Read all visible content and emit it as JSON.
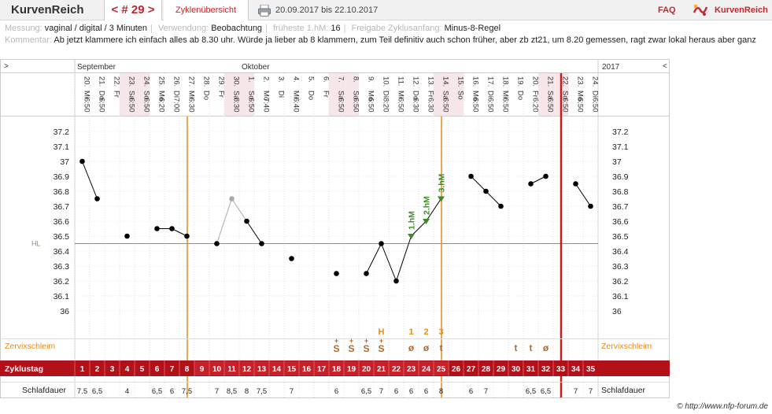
{
  "topbar": {
    "brand": "KurvenReich",
    "cycle_label": "< # 29 >",
    "overview_tab": "Zyklenübersicht",
    "date_range": "20.09.2017 bis 22.10.2017",
    "faq": "FAQ",
    "logo_text": "KurvenReich",
    "print_icon": "printer-icon",
    "logo_icon": "kurvenreich-logo-icon"
  },
  "info": {
    "measurement_label": "Messung:",
    "measurement_value": "vaginal / digital / 3 Minuten",
    "usage_label": "Verwendung:",
    "usage_value": "Beobachtung",
    "earliest_label": "früheste 1.hM:",
    "earliest_value": "16",
    "release_label": "Freigabe Zyklusanfang:",
    "release_value": "Minus-8-Regel",
    "comment_label": "Kommentar:",
    "comment_value": "Ab jetzt klammere ich einfach alles ab 8.30  uhr. Würde ja lieber ab 8 klammern, zum Teil definitiv auch schon früher, aber zb zt21, um 8.20 gemessen, ragt zwar lokal heraus aber ganz"
  },
  "chart_data": {
    "type": "line",
    "year_label": "2017",
    "month_labels": [
      {
        "label": "September",
        "index": 0
      },
      {
        "label": "Oktober",
        "index": 11
      }
    ],
    "nav_left": ">",
    "nav_right": "<",
    "dates": [
      "20.",
      "21.",
      "22.",
      "23.",
      "24.",
      "25.",
      "26.",
      "27.",
      "28.",
      "29.",
      "30.",
      "1.",
      "2.",
      "3.",
      "4.",
      "5.",
      "6.",
      "7.",
      "8.",
      "9.",
      "10.",
      "11.",
      "12.",
      "13.",
      "14.",
      "15.",
      "16.",
      "17.",
      "18.",
      "19.",
      "20.",
      "21.",
      "22.",
      "23.",
      "24."
    ],
    "weekdays": [
      "Mi",
      "Do",
      "Fr",
      "Sa",
      "So",
      "Mo",
      "Di",
      "Mi",
      "Do",
      "Fr",
      "Sa",
      "So",
      "Mo",
      "Di",
      "Mi",
      "Do",
      "Fr",
      "Sa",
      "So",
      "Mo",
      "Di",
      "Mi",
      "Do",
      "Fr",
      "Sa",
      "So",
      "Mo",
      "Di",
      "Mi",
      "Do",
      "Fr",
      "Sa",
      "So",
      "Mo",
      "Di"
    ],
    "weekend": [
      false,
      false,
      false,
      true,
      true,
      false,
      false,
      false,
      false,
      false,
      true,
      true,
      false,
      false,
      false,
      false,
      false,
      true,
      true,
      false,
      false,
      false,
      false,
      false,
      true,
      true,
      false,
      false,
      false,
      false,
      false,
      true,
      true,
      false,
      false
    ],
    "times": [
      "6:50",
      "6:50",
      "",
      "6:50",
      "6:50",
      "6:20",
      "7:00",
      "6:30",
      "",
      "",
      "8:30",
      "6:50",
      "7:40",
      "",
      "6:40",
      "",
      "",
      "6:50",
      "6:50",
      "6:50",
      "8:20",
      "6:50",
      "6:30",
      "6:30",
      "6:50",
      "",
      "6:50",
      "6:50",
      "6:50",
      "",
      "6:20",
      "6:50",
      "6:50",
      "6:50",
      "6:50"
    ],
    "temperatures": [
      37.0,
      36.75,
      null,
      36.5,
      null,
      36.55,
      36.55,
      36.5,
      null,
      36.45,
      36.75,
      36.6,
      36.45,
      null,
      36.35,
      null,
      null,
      36.25,
      null,
      36.25,
      36.45,
      36.2,
      36.5,
      36.6,
      36.75,
      null,
      36.9,
      36.8,
      36.7,
      null,
      36.85,
      36.9,
      null,
      36.85,
      36.7
    ],
    "excluded": [
      10
    ],
    "ylim": [
      35.9,
      37.3
    ],
    "yticks": [
      36,
      36.1,
      36.2,
      36.3,
      36.4,
      36.5,
      36.6,
      36.7,
      36.8,
      36.9,
      37,
      37.1,
      37.2
    ],
    "hl_label": "HL",
    "hl_value": 36.45,
    "high_markers": [
      {
        "index": 22,
        "label": "1.hM"
      },
      {
        "index": 23,
        "label": "2.hM"
      },
      {
        "index": 24,
        "label": "3.hM"
      }
    ],
    "peak_label": "H",
    "peak_index": 20,
    "peak_count": [
      {
        "index": 22,
        "label": "1"
      },
      {
        "index": 23,
        "label": "2"
      },
      {
        "index": 24,
        "label": "3"
      }
    ],
    "orange_lines": [
      7.5,
      24.5
    ],
    "red_line": 32.5,
    "mucus_label": "Zervixschleim",
    "mucus": [
      "",
      "",
      "",
      "",
      "",
      "",
      "",
      "",
      "",
      "",
      "",
      "",
      "",
      "",
      "",
      "",
      "",
      "S+",
      "S+",
      "S+",
      "S+",
      "",
      "ø",
      "ø",
      "t",
      "",
      "",
      "",
      "",
      "t",
      "t",
      "ø",
      "",
      "",
      ""
    ],
    "cycle_day_label": "Zyklustag",
    "cycle_days": [
      "1",
      "2",
      "3",
      "4",
      "5",
      "6",
      "7",
      "8",
      "9",
      "10",
      "11",
      "12",
      "13",
      "14",
      "15",
      "16",
      "17",
      "18",
      "19",
      "20",
      "21",
      "22",
      "23",
      "24",
      "25",
      "26",
      "27",
      "28",
      "29",
      "30",
      "31",
      "32",
      "33",
      "34",
      "35"
    ],
    "sleep_label": "Schlafdauer",
    "sleep": [
      "7.5",
      "6,5",
      "",
      "4",
      "",
      "6,5",
      "6",
      "7,5",
      "",
      "7",
      "8,5",
      "8",
      "7,5",
      "",
      "7",
      "",
      "",
      "6",
      "",
      "6,5",
      "7",
      "6",
      "6",
      "6",
      "8",
      "",
      "6",
      "7",
      "",
      "",
      "6,5",
      "6,5",
      "",
      "7",
      "7"
    ],
    "copyright": "© http://www.nfp-forum.de",
    "colors": {
      "brand_red": "#c0282d",
      "orange": "#e98b1d",
      "green": "#3d8a25",
      "weekend_bg": "#f7e6ea",
      "row_red": "#b2111a"
    }
  }
}
